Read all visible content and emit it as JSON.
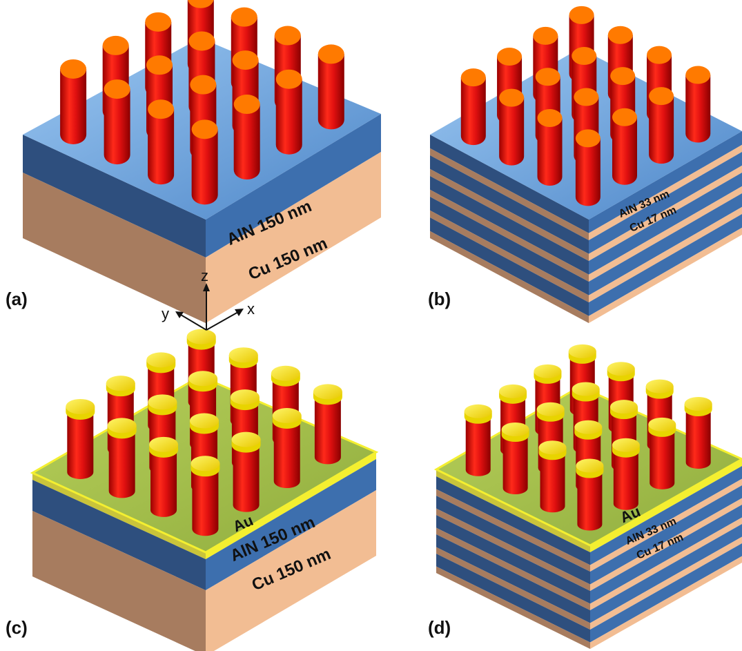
{
  "panels": [
    {
      "label": "(a)",
      "stack": "single",
      "gold": false,
      "layers": [
        {
          "name": "AlN 150 nm",
          "color": "#4a7fbf"
        },
        {
          "name": "Cu 150 nm",
          "color": "#f4c09a"
        }
      ]
    },
    {
      "label": "(b)",
      "stack": "multilayer",
      "gold": false,
      "layers": [
        {
          "name": "AlN 33 nm",
          "color": "#4a7fbf"
        },
        {
          "name": "Cu 17 nm",
          "color": "#f4c09a"
        }
      ]
    },
    {
      "label": "(c)",
      "stack": "single",
      "gold": true,
      "gold_label": "Au",
      "layers": [
        {
          "name": "AlN 150 nm",
          "color": "#4a7fbf"
        },
        {
          "name": "Cu 150 nm",
          "color": "#f4c09a"
        }
      ]
    },
    {
      "label": "(d)",
      "stack": "multilayer",
      "gold": true,
      "gold_label": "Au",
      "layers": [
        {
          "name": "AlN 33 nm",
          "color": "#4a7fbf"
        },
        {
          "name": "Cu 17 nm",
          "color": "#f4c09a"
        }
      ]
    }
  ],
  "axes": {
    "x": "x",
    "y": "y",
    "z": "z"
  },
  "colors": {
    "aln_top": "#78aee6",
    "aln_side": "#3d6fae",
    "aln_dark": "#2e4f7e",
    "cu_side": "#f2bd93",
    "cu_dark": "#a77c5f",
    "pillar": "#e01010",
    "pillar_top": "#ff7a00",
    "au_top": "#a6c24a",
    "au_rim": "#f4ef30",
    "au_cap": "#f7ea10"
  }
}
